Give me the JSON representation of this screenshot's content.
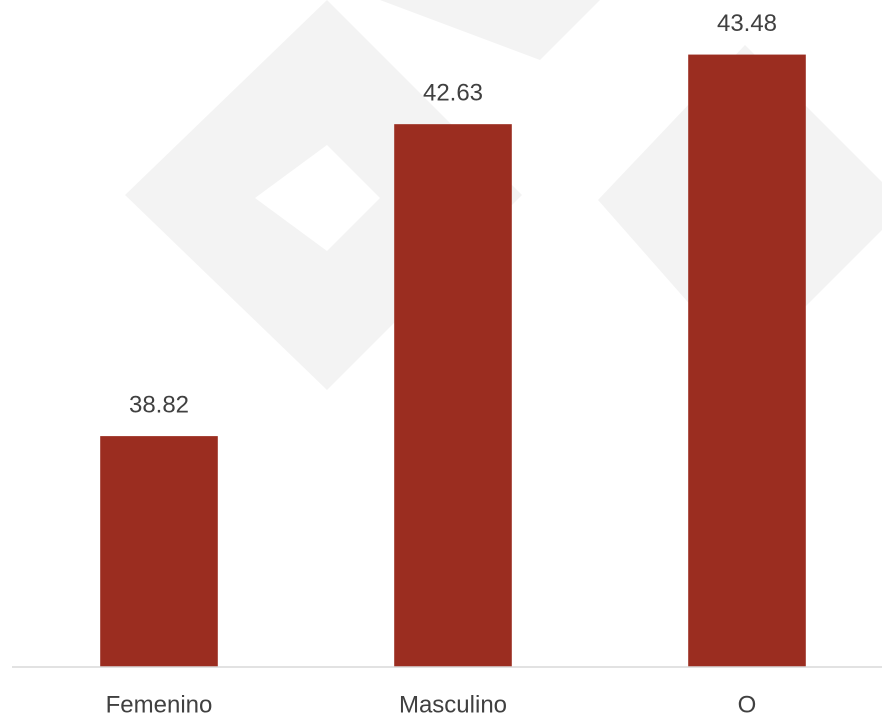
{
  "chart_data": {
    "type": "bar",
    "categories": [
      "Femenino",
      "Masculino",
      "O"
    ],
    "values": [
      38.82,
      42.63,
      43.48
    ],
    "color": "#9b2d20",
    "ylim": [
      36,
      44
    ]
  }
}
